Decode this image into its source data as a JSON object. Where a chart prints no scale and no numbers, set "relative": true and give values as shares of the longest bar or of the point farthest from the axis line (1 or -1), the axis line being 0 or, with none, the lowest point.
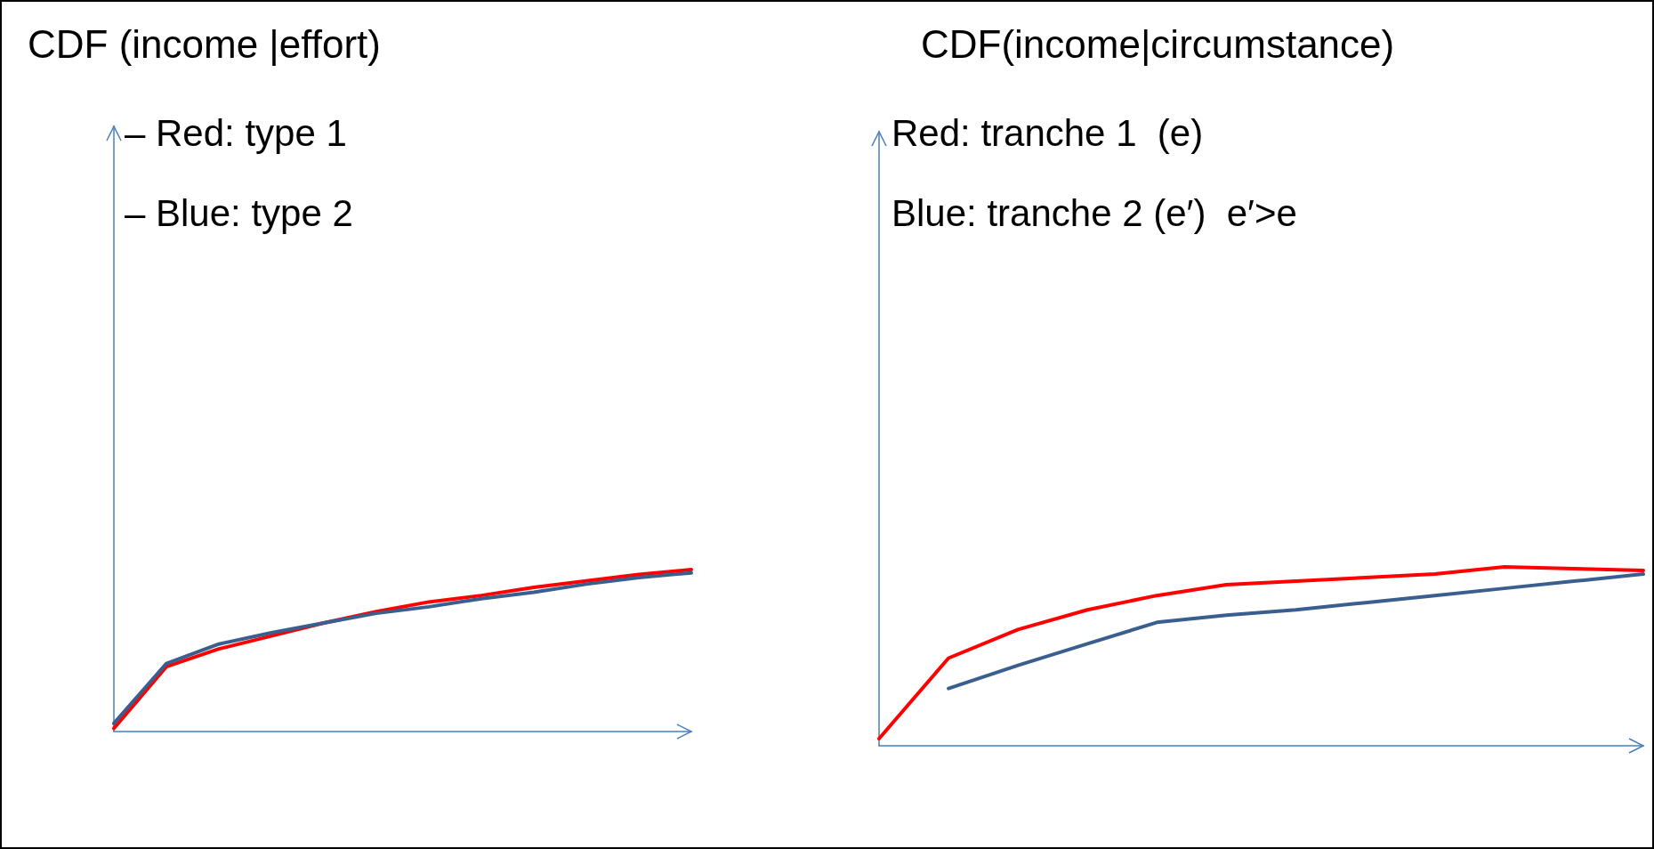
{
  "chart_data": [
    {
      "type": "line",
      "title": "CDF (income |effort)",
      "annotations": [
        "– Red: type 1",
        "– Blue: type 2"
      ],
      "relative": true,
      "categories": [
        null,
        null,
        null,
        null,
        null,
        null,
        null,
        null,
        null,
        null,
        null,
        null
      ],
      "series": [
        {
          "color": "#ff0000",
          "values": [
            0.02,
            0.4,
            0.51,
            0.59,
            0.67,
            0.74,
            0.8,
            0.84,
            0.89,
            0.93,
            0.97,
            1.0
          ]
        },
        {
          "color": "#3a5f8f",
          "values": [
            0.05,
            0.42,
            0.54,
            0.61,
            0.67,
            0.73,
            0.77,
            0.82,
            0.86,
            0.91,
            0.95,
            0.98
          ]
        }
      ],
      "marker": "none",
      "grid": false
    },
    {
      "type": "line",
      "title": "CDF(income|circumstance)",
      "annotations": [
        "Red: tranche 1  (e)",
        "Blue: tranche 2 (e′)  e′>e"
      ],
      "relative": true,
      "categories": [
        null,
        null,
        null,
        null,
        null,
        null,
        null,
        null,
        null,
        null,
        null,
        null
      ],
      "series": [
        {
          "color": "#ff0000",
          "values": [
            0.04,
            0.49,
            0.65,
            0.76,
            0.84,
            0.9,
            0.92,
            0.94,
            0.96,
            1.0,
            0.99,
            0.98
          ]
        },
        {
          "color": "#3a5f8f",
          "values": [
            null,
            0.32,
            0.45,
            0.57,
            0.69,
            0.73,
            0.76,
            0.8,
            0.84,
            0.88,
            0.92,
            0.96
          ]
        }
      ],
      "marker": "none",
      "grid": false
    }
  ]
}
